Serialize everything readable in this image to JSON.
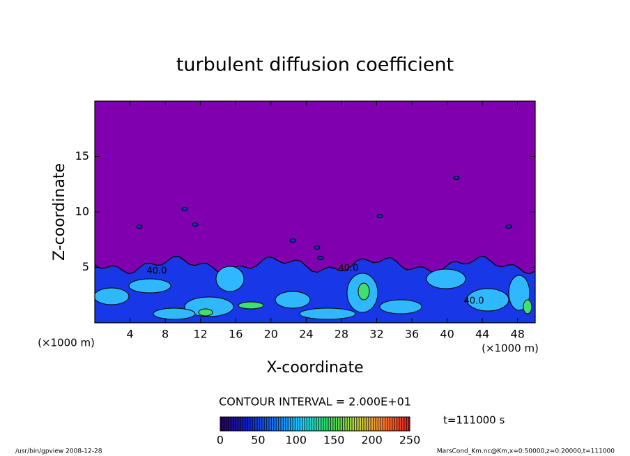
{
  "chart_data": {
    "type": "contour",
    "title": "turbulent diffusion coefficient",
    "x_label": "X-coordinate",
    "y_label": "Z-coordinate",
    "x_unit": "(×1000 m)",
    "y_unit": "(×1000 m)",
    "xlim": [
      0,
      50
    ],
    "xticks": [
      4,
      8,
      12,
      16,
      20,
      24,
      28,
      32,
      36,
      40,
      44,
      48
    ],
    "ylim": [
      0,
      20
    ],
    "yticks": [
      5,
      10,
      15
    ],
    "background_color": "#8000b0",
    "contour_labels": [
      "40.0",
      "40.0",
      "40.0"
    ],
    "contour_interval_text": "CONTOUR INTERVAL = 2.000E+01",
    "colorbar": {
      "lim": [
        0,
        250
      ],
      "ticks": [
        0,
        50,
        100,
        150,
        200,
        250
      ],
      "colormap": [
        "#2a0060",
        "#1020d0",
        "#1878ff",
        "#20d0ff",
        "#30e060",
        "#c0e040",
        "#ff8030",
        "#e02020"
      ]
    },
    "time_text": "t=111000 s",
    "footer_left": "/usr/bin/gpview   2008-12-28",
    "footer_right": "MarsCond_Km.nc@Km,x=0:50000,z=0:20000,t=111000"
  }
}
